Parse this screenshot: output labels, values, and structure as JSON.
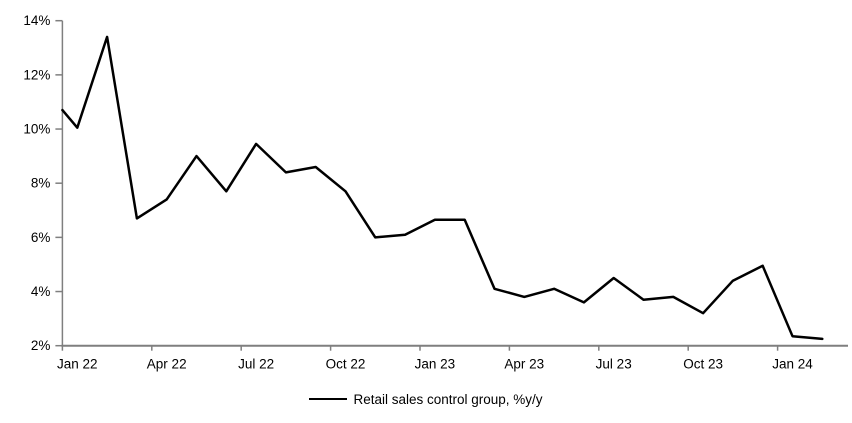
{
  "chart_data": {
    "type": "line",
    "title": "",
    "legend": "Retail sales control group, %y/y",
    "legend_position": "bottom-center",
    "grid": "off",
    "series_color": "#000000",
    "axis_color": "#7f7f7f",
    "text_color": "#000000",
    "ylim": [
      2,
      14
    ],
    "y_tick_values": [
      2,
      4,
      6,
      8,
      10,
      12,
      14
    ],
    "y_tick_labels": [
      "2%",
      "4%",
      "6%",
      "8%",
      "10%",
      "12%",
      "14%"
    ],
    "x_tick_labels": [
      "Jan 22",
      "Apr 22",
      "Jul 22",
      "Oct 22",
      "Jan 23",
      "Apr 23",
      "Jul 23",
      "Oct 23",
      "Jan 24"
    ],
    "x_tick_every_months": 3,
    "categories": [
      "Jan 22",
      "Feb 22",
      "Mar 22",
      "Apr 22",
      "May 22",
      "Jun 22",
      "Jul 22",
      "Aug 22",
      "Sep 22",
      "Oct 22",
      "Nov 22",
      "Dec 22",
      "Jan 23",
      "Feb 23",
      "Mar 23",
      "Apr 23",
      "May 23",
      "Jun 23",
      "Jul 23",
      "Aug 23",
      "Sep 23",
      "Oct 23",
      "Nov 23",
      "Dec 23",
      "Jan 24",
      "Feb 24"
    ],
    "values": [
      10.05,
      13.4,
      6.7,
      7.4,
      9.0,
      7.7,
      9.45,
      8.4,
      8.6,
      7.7,
      6.0,
      6.1,
      6.65,
      6.65,
      4.1,
      3.8,
      4.1,
      3.6,
      4.5,
      3.7,
      3.8,
      3.2,
      4.4,
      4.95,
      2.35,
      2.25
    ],
    "lead_in_edge_value": 10.7,
    "lead_in_note": "line enters plot at the left axis at ~10.7% before the Jan 22 point (prior month clipped)"
  }
}
